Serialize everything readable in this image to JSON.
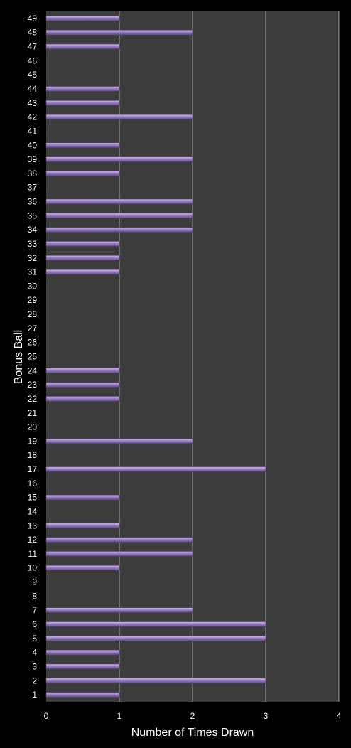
{
  "chart_data": {
    "type": "bar",
    "orientation": "horizontal",
    "categories": [
      "1",
      "2",
      "3",
      "4",
      "5",
      "6",
      "7",
      "8",
      "9",
      "10",
      "11",
      "12",
      "13",
      "14",
      "15",
      "16",
      "17",
      "18",
      "19",
      "20",
      "21",
      "22",
      "23",
      "24",
      "25",
      "26",
      "27",
      "28",
      "29",
      "30",
      "31",
      "32",
      "33",
      "34",
      "35",
      "36",
      "37",
      "38",
      "39",
      "40",
      "41",
      "42",
      "43",
      "44",
      "45",
      "46",
      "47",
      "48",
      "49"
    ],
    "values": [
      1,
      3,
      1,
      1,
      3,
      3,
      2,
      0,
      0,
      1,
      2,
      2,
      1,
      0,
      1,
      0,
      3,
      0,
      2,
      0,
      0,
      1,
      1,
      1,
      0,
      0,
      0,
      0,
      0,
      0,
      1,
      1,
      1,
      2,
      2,
      2,
      0,
      1,
      2,
      1,
      0,
      2,
      1,
      1,
      0,
      0,
      1,
      2,
      1
    ],
    "xlabel": "Number of Times Drawn",
    "ylabel": "Bonus Ball",
    "xlim": [
      0,
      4
    ],
    "x_ticks": [
      "0",
      "1",
      "2",
      "3",
      "4"
    ],
    "grid": "vertical",
    "legend": "none",
    "colors": {
      "background": "#000000",
      "plot_area": "#3c3c3c",
      "gridline": "#9a9a9a",
      "bar_fill": "#9b80c4",
      "bar_highlight": "#cdbde8",
      "bar_shadow": "#5c4a80",
      "text": "#ffffff"
    }
  }
}
